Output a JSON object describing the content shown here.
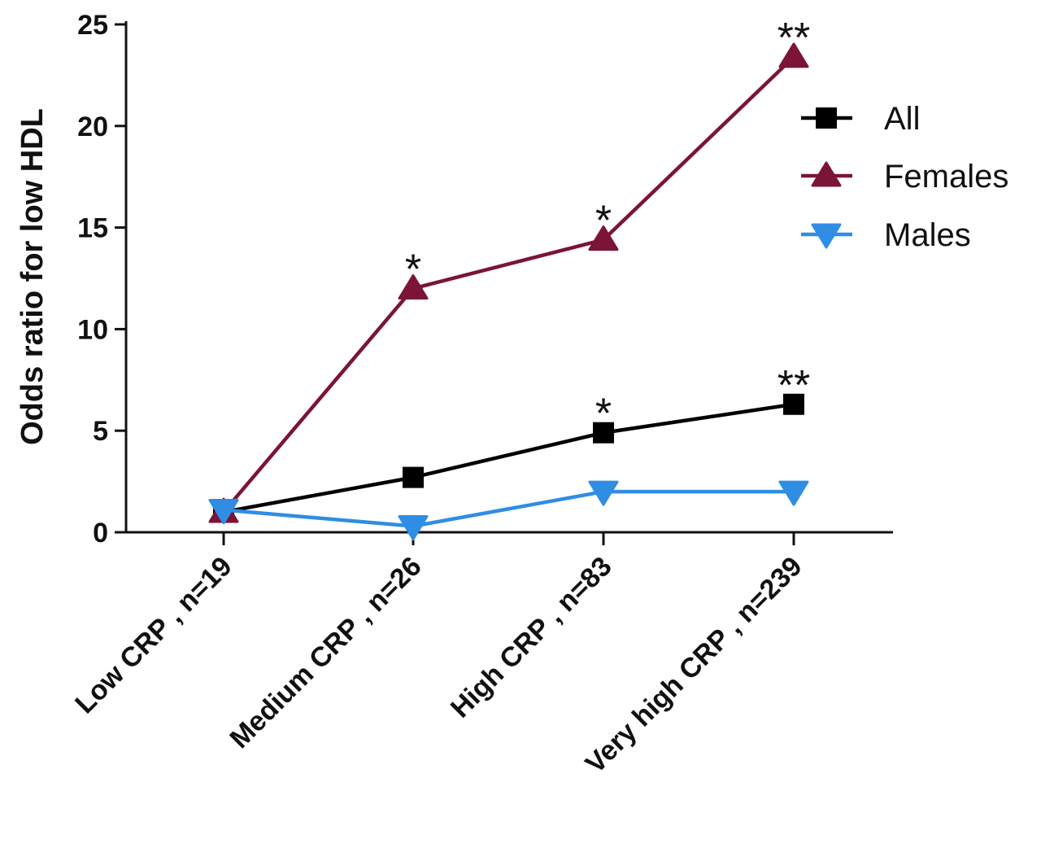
{
  "chart_data": {
    "type": "line",
    "title": "",
    "xlabel": "",
    "ylabel": "Odds ratio for low HDL",
    "categories": [
      "Low CRP , n=19",
      "Medium CRP , n=26",
      "High CRP , n=83",
      "Very high CRP , n=239"
    ],
    "ylim": [
      0,
      25
    ],
    "yticks": [
      "0",
      "5",
      "10",
      "15",
      "20",
      "25"
    ],
    "grid": false,
    "legend_position": "right",
    "series": [
      {
        "name": "All",
        "values": [
          1.0,
          2.7,
          4.9,
          6.3
        ],
        "color": "#000000",
        "marker": "square"
      },
      {
        "name": "Females",
        "values": [
          1.0,
          12.0,
          14.4,
          23.4
        ],
        "color": "#7b1436",
        "marker": "triangle-up"
      },
      {
        "name": "Males",
        "values": [
          1.1,
          0.3,
          2.0,
          2.0
        ],
        "color": "#2f8de4",
        "marker": "triangle-down"
      }
    ],
    "annotations": [
      {
        "series": "Females",
        "category": "Medium CRP , n=26",
        "text": "*"
      },
      {
        "series": "Females",
        "category": "High CRP , n=83",
        "text": "*"
      },
      {
        "series": "Females",
        "category": "Very high CRP , n=239",
        "text": "**"
      },
      {
        "series": "All",
        "category": "High CRP , n=83",
        "text": "*"
      },
      {
        "series": "All",
        "category": "Very high CRP , n=239",
        "text": "**"
      }
    ]
  }
}
